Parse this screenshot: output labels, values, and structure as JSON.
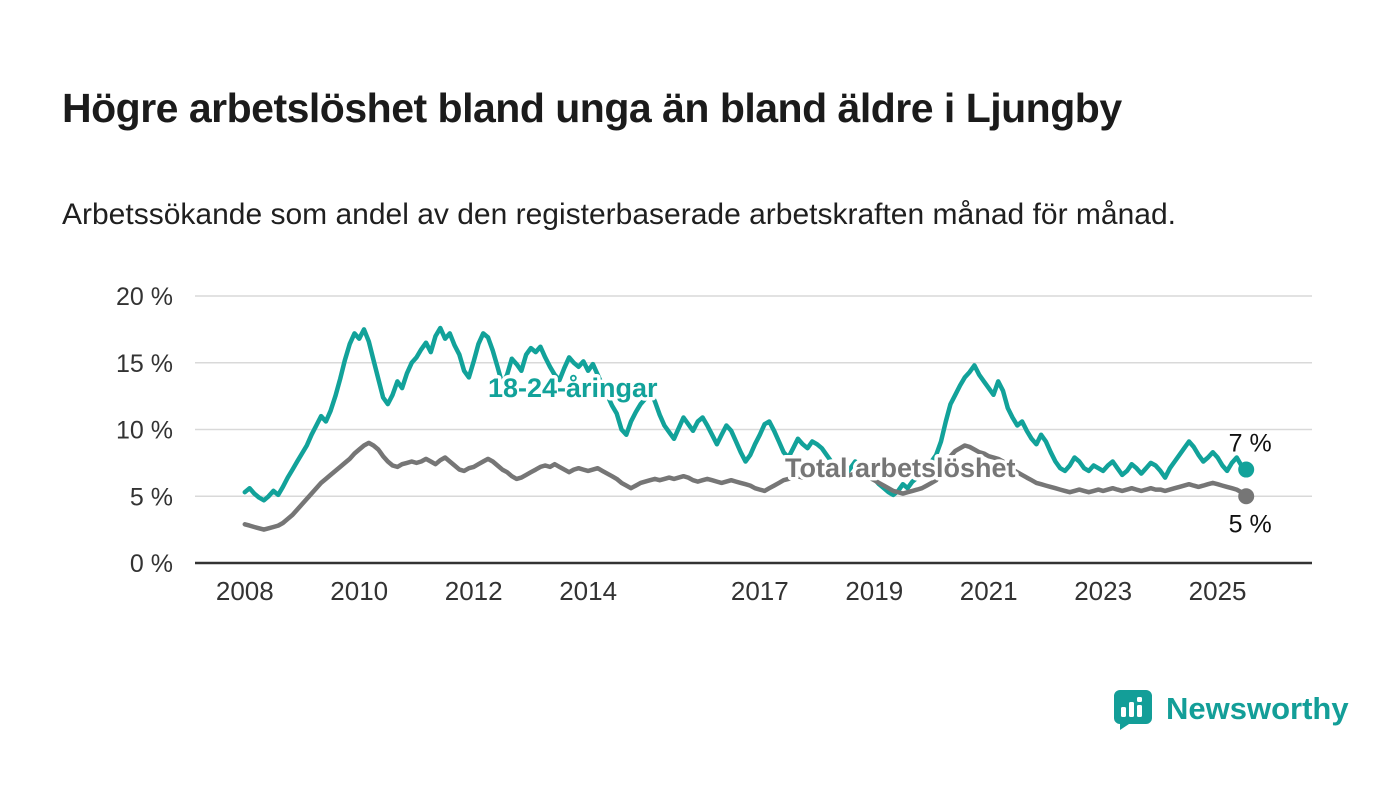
{
  "page": {
    "title": "Högre arbetslöshet bland unga än bland äldre i Ljungby",
    "subtitle": "Arbetssökande som andel av den registerbaserade arbetskraften månad för månad."
  },
  "branding": {
    "name": "Newsworthy",
    "color": "#139e98",
    "icon": "bar-chart-pin-icon"
  },
  "chart_data": {
    "type": "line",
    "title": "Högre arbetslöshet bland unga än bland äldre i Ljungby",
    "subtitle": "Arbetssökande som andel av den registerbaserade arbetskraften månad för månad.",
    "x_start_year": 2008,
    "x_start_month": 1,
    "step_months": 1,
    "xlim": [
      2007.13,
      2026.65
    ],
    "ylim": [
      0,
      20
    ],
    "yticks": [
      0,
      5,
      10,
      15,
      20
    ],
    "ytick_suffix": " %",
    "xticks": [
      2008,
      2010,
      2012,
      2014,
      2017,
      2019,
      2021,
      2023,
      2025
    ],
    "grid": true,
    "legend_position": "inline-labels",
    "axis_color": "#333333",
    "grid_color": "#d9d9d9",
    "series": [
      {
        "name": "18-24-åringar",
        "color": "#12a29a",
        "label_x": 2012.25,
        "label_y": 13.1,
        "end_label": "7 %",
        "end_label_position": "above",
        "values": [
          5.3,
          5.6,
          5.2,
          4.9,
          4.7,
          5.0,
          5.4,
          5.1,
          5.7,
          6.4,
          7.0,
          7.6,
          8.2,
          8.8,
          9.6,
          10.3,
          11.0,
          10.6,
          11.4,
          12.5,
          13.8,
          15.2,
          16.4,
          17.2,
          16.8,
          17.5,
          16.6,
          15.2,
          13.8,
          12.4,
          11.9,
          12.6,
          13.6,
          13.1,
          14.2,
          15.0,
          15.4,
          16.0,
          16.5,
          15.8,
          17.0,
          17.6,
          16.8,
          17.2,
          16.3,
          15.6,
          14.4,
          13.9,
          15.1,
          16.4,
          17.2,
          16.9,
          15.9,
          14.7,
          13.4,
          14.1,
          15.3,
          14.9,
          14.4,
          15.6,
          16.1,
          15.8,
          16.2,
          15.4,
          14.7,
          14.1,
          13.7,
          14.6,
          15.4,
          15.0,
          14.7,
          15.1,
          14.4,
          14.9,
          14.1,
          13.3,
          12.6,
          11.8,
          11.2,
          10.0,
          9.6,
          10.6,
          11.3,
          11.9,
          12.3,
          12.9,
          12.1,
          11.1,
          10.3,
          9.8,
          9.3,
          10.1,
          10.9,
          10.4,
          9.9,
          10.6,
          10.9,
          10.3,
          9.6,
          8.9,
          9.6,
          10.3,
          9.9,
          9.1,
          8.3,
          7.6,
          8.1,
          8.9,
          9.6,
          10.4,
          10.6,
          9.9,
          9.1,
          8.3,
          7.9,
          8.6,
          9.3,
          8.9,
          8.6,
          9.1,
          8.9,
          8.6,
          8.1,
          7.6,
          7.1,
          6.9,
          6.6,
          7.1,
          7.6,
          7.3,
          6.9,
          6.6,
          6.3,
          5.9,
          5.6,
          5.3,
          5.1,
          5.4,
          5.9,
          5.6,
          6.1,
          6.4,
          6.7,
          7.1,
          7.6,
          8.1,
          9.1,
          10.6,
          11.9,
          12.6,
          13.3,
          13.9,
          14.3,
          14.8,
          14.1,
          13.6,
          13.1,
          12.6,
          13.6,
          12.9,
          11.6,
          10.9,
          10.3,
          10.6,
          9.9,
          9.3,
          8.9,
          9.6,
          9.1,
          8.3,
          7.6,
          7.1,
          6.9,
          7.3,
          7.9,
          7.6,
          7.1,
          6.9,
          7.3,
          7.1,
          6.9,
          7.3,
          7.6,
          7.1,
          6.6,
          6.9,
          7.4,
          7.1,
          6.7,
          7.1,
          7.5,
          7.3,
          6.9,
          6.4,
          7.1,
          7.6,
          8.1,
          8.6,
          9.1,
          8.7,
          8.1,
          7.6,
          7.9,
          8.3,
          7.9,
          7.3,
          6.9,
          7.5,
          7.9,
          7.3,
          7.0
        ]
      },
      {
        "name": "Total arbetslöshet",
        "color": "#767676",
        "label_x": 2017.44,
        "label_y": 7.1,
        "end_label": "5 %",
        "end_label_position": "below",
        "values": [
          2.9,
          2.8,
          2.7,
          2.6,
          2.5,
          2.6,
          2.7,
          2.8,
          3.0,
          3.3,
          3.6,
          4.0,
          4.4,
          4.8,
          5.2,
          5.6,
          6.0,
          6.3,
          6.6,
          6.9,
          7.2,
          7.5,
          7.8,
          8.2,
          8.5,
          8.8,
          9.0,
          8.8,
          8.5,
          8.0,
          7.6,
          7.3,
          7.2,
          7.4,
          7.5,
          7.6,
          7.5,
          7.6,
          7.8,
          7.6,
          7.4,
          7.7,
          7.9,
          7.6,
          7.3,
          7.0,
          6.9,
          7.1,
          7.2,
          7.4,
          7.6,
          7.8,
          7.6,
          7.3,
          7.0,
          6.8,
          6.5,
          6.3,
          6.4,
          6.6,
          6.8,
          7.0,
          7.2,
          7.3,
          7.2,
          7.4,
          7.2,
          7.0,
          6.8,
          7.0,
          7.1,
          7.0,
          6.9,
          7.0,
          7.1,
          6.9,
          6.7,
          6.5,
          6.3,
          6.0,
          5.8,
          5.6,
          5.8,
          6.0,
          6.1,
          6.2,
          6.3,
          6.2,
          6.3,
          6.4,
          6.3,
          6.4,
          6.5,
          6.4,
          6.2,
          6.1,
          6.2,
          6.3,
          6.2,
          6.1,
          6.0,
          6.1,
          6.2,
          6.1,
          6.0,
          5.9,
          5.8,
          5.6,
          5.5,
          5.4,
          5.6,
          5.8,
          6.0,
          6.2,
          6.3,
          6.4,
          6.5,
          6.4,
          6.5,
          6.6,
          6.7,
          6.8,
          6.9,
          6.8,
          6.7,
          6.6,
          6.5,
          6.6,
          6.7,
          6.6,
          6.5,
          6.4,
          6.2,
          6.0,
          5.8,
          5.6,
          5.4,
          5.3,
          5.2,
          5.3,
          5.4,
          5.5,
          5.6,
          5.8,
          6.0,
          6.2,
          6.8,
          7.5,
          8.0,
          8.4,
          8.6,
          8.8,
          8.7,
          8.5,
          8.3,
          8.2,
          8.0,
          7.9,
          7.8,
          7.6,
          7.3,
          7.0,
          6.8,
          6.6,
          6.4,
          6.2,
          6.0,
          5.9,
          5.8,
          5.7,
          5.6,
          5.5,
          5.4,
          5.3,
          5.4,
          5.5,
          5.4,
          5.3,
          5.4,
          5.5,
          5.4,
          5.5,
          5.6,
          5.5,
          5.4,
          5.5,
          5.6,
          5.5,
          5.4,
          5.5,
          5.6,
          5.5,
          5.5,
          5.4,
          5.5,
          5.6,
          5.7,
          5.8,
          5.9,
          5.8,
          5.7,
          5.8,
          5.9,
          6.0,
          5.9,
          5.8,
          5.7,
          5.6,
          5.5,
          5.3,
          5.0
        ]
      }
    ]
  }
}
